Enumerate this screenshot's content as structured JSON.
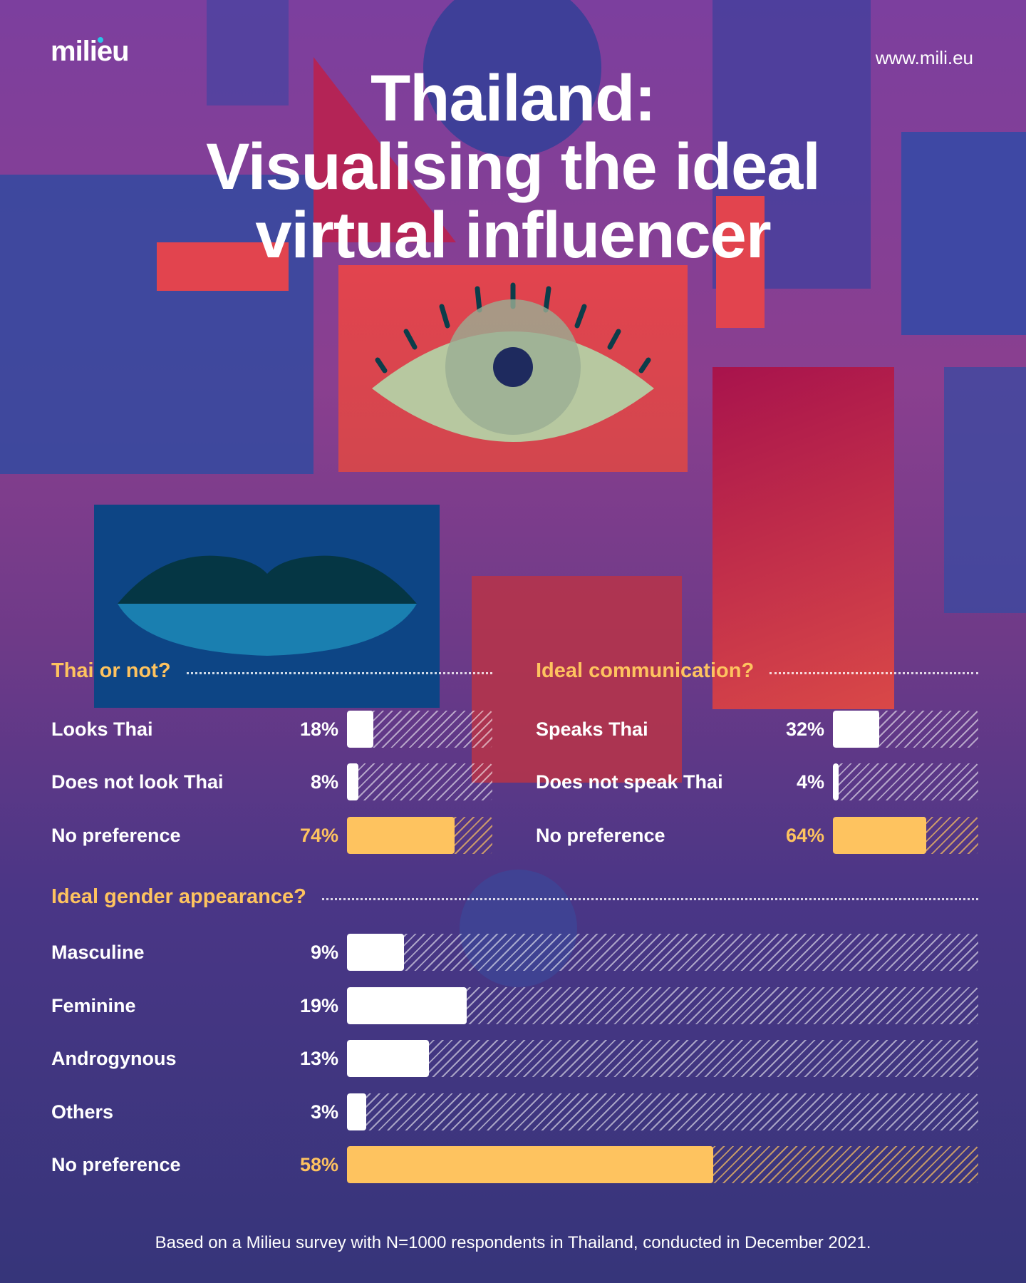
{
  "brand": {
    "logo": "milieu",
    "url": "www.mili.eu"
  },
  "title": [
    "Thailand:",
    "Visualising the ideal",
    "virtual influencer"
  ],
  "colors": {
    "accent": "#fec35f",
    "bar": "#ffffff"
  },
  "sections": [
    {
      "heading": "Thai or not?",
      "rows": [
        {
          "label": "Looks Thai",
          "pct": "18%",
          "value": 18,
          "highlight": false
        },
        {
          "label": "Does not look Thai",
          "pct": "8%",
          "value": 8,
          "highlight": false
        },
        {
          "label": "No preference",
          "pct": "74%",
          "value": 74,
          "highlight": true
        }
      ]
    },
    {
      "heading": "Ideal communication?",
      "rows": [
        {
          "label": "Speaks Thai",
          "pct": "32%",
          "value": 32,
          "highlight": false
        },
        {
          "label": "Does not speak Thai",
          "pct": "4%",
          "value": 4,
          "highlight": false
        },
        {
          "label": "No preference",
          "pct": "64%",
          "value": 64,
          "highlight": true
        }
      ]
    },
    {
      "heading": "Ideal gender appearance?",
      "rows": [
        {
          "label": "Masculine",
          "pct": "9%",
          "value": 9,
          "highlight": false
        },
        {
          "label": "Feminine",
          "pct": "19%",
          "value": 19,
          "highlight": false
        },
        {
          "label": "Androgynous",
          "pct": "13%",
          "value": 13,
          "highlight": false
        },
        {
          "label": "Others",
          "pct": "3%",
          "value": 3,
          "highlight": false
        },
        {
          "label": "No preference",
          "pct": "58%",
          "value": 58,
          "highlight": true
        }
      ]
    }
  ],
  "footer": "Based on a Milieu survey with N=1000 respondents in Thailand, conducted in December 2021."
}
